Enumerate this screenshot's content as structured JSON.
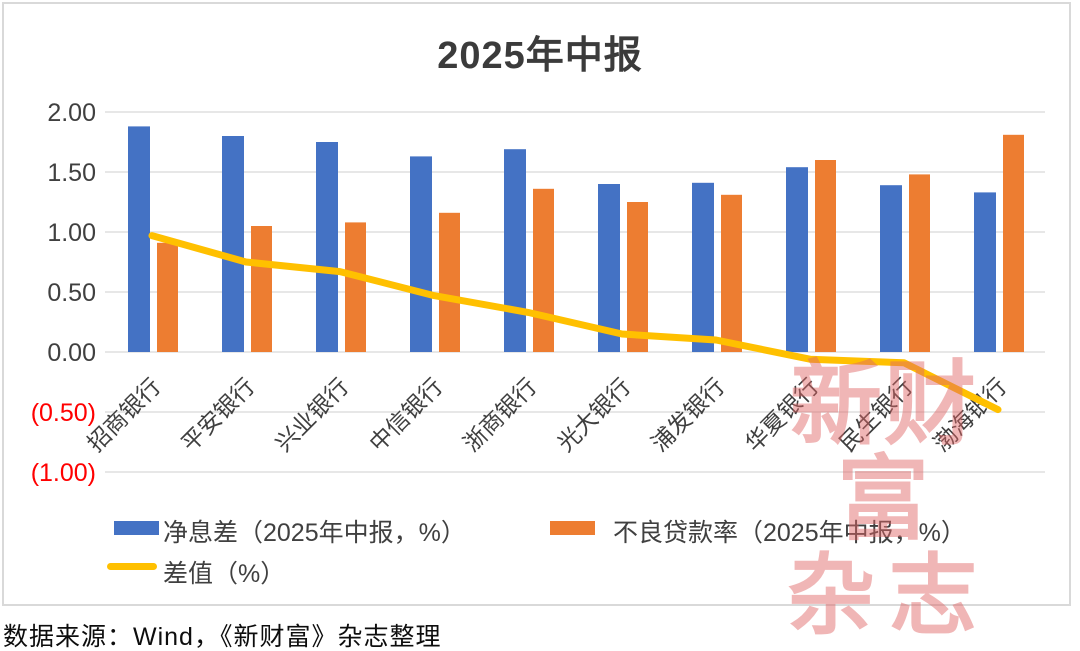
{
  "title": "2025年中报",
  "source_note": "数据来源：Wind，《新财富》杂志整理",
  "watermark": {
    "line1": "新财富",
    "line2": "杂志"
  },
  "legend": {
    "nim_label": "净息差（2025年中报，%）",
    "npl_label": "不良贷款率（2025年中报，%）",
    "diff_label": "差值（%）"
  },
  "colors": {
    "nim_bar": "#4472C4",
    "npl_bar": "#ED7D31",
    "diff_line": "#FFC000",
    "negative_tick": "#FF0000",
    "tick_text": "#404040",
    "gridline": "#E7E7E7",
    "frame_border": "#D9D9D9",
    "title_text": "#3B3B3B"
  },
  "chart_data": {
    "type": "bar",
    "title": "2025年中报",
    "categories": [
      "招商银行",
      "平安银行",
      "兴业银行",
      "中信银行",
      "浙商银行",
      "光大银行",
      "浦发银行",
      "华夏银行",
      "民生银行",
      "渤海银行"
    ],
    "series": [
      {
        "name": "净息差（2025年中报，%）",
        "type": "bar",
        "color": "#4472C4",
        "values": [
          1.88,
          1.8,
          1.75,
          1.63,
          1.69,
          1.4,
          1.41,
          1.54,
          1.39,
          1.33
        ]
      },
      {
        "name": "不良贷款率（2025年中报，%）",
        "type": "bar",
        "color": "#ED7D31",
        "values": [
          0.91,
          1.05,
          1.08,
          1.16,
          1.36,
          1.25,
          1.31,
          1.6,
          1.48,
          1.81
        ]
      },
      {
        "name": "差值（%）",
        "type": "line",
        "color": "#FFC000",
        "values": [
          0.97,
          0.75,
          0.67,
          0.47,
          0.33,
          0.15,
          0.1,
          -0.06,
          -0.09,
          -0.48
        ]
      }
    ],
    "xlabel": "",
    "ylabel": "",
    "ylim": [
      -1.0,
      2.0
    ],
    "y_tick_step": 0.5,
    "y_tick_labels": [
      "2.00",
      "1.50",
      "1.00",
      "0.50",
      "0.00",
      "(0.50)",
      "(1.00)"
    ],
    "grid": true,
    "legend_position": "bottom",
    "x_label_rotation_deg": 45
  }
}
